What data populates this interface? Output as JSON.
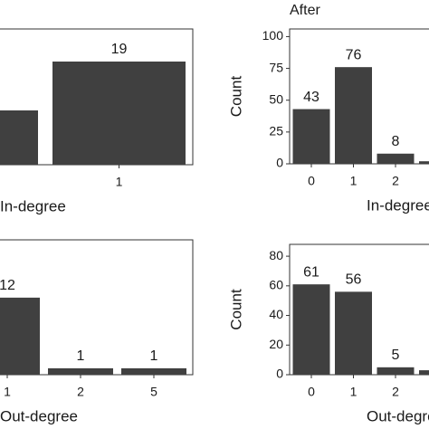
{
  "chart_data": [
    {
      "type": "bar",
      "x_label": "In-degree",
      "categories": [
        null,
        "1"
      ],
      "values": [
        10,
        19
      ],
      "color": "#404040",
      "ylim": [
        0,
        25
      ]
    },
    {
      "type": "bar",
      "title": "After",
      "y_label": "Count",
      "x_label": "In-degree",
      "categories": [
        "0",
        "1",
        "2",
        null
      ],
      "values": [
        43,
        76,
        8,
        2
      ],
      "color": "#404040",
      "ylim": [
        0,
        106
      ],
      "yticks": [
        0,
        25,
        50,
        75,
        100
      ]
    },
    {
      "type": "bar",
      "x_label": "Out-degree",
      "categories": [
        "1",
        "2",
        "5"
      ],
      "values": [
        12,
        1,
        1
      ],
      "color": "#404040",
      "ylim": [
        0,
        21
      ]
    },
    {
      "type": "bar",
      "y_label": "Count",
      "x_label": "Out-degree",
      "categories": [
        "0",
        "1",
        "2",
        null
      ],
      "values": [
        61,
        56,
        5,
        3
      ],
      "color": "#404040",
      "ylim": [
        0,
        88
      ],
      "yticks": [
        0,
        20,
        40,
        60,
        80
      ]
    }
  ]
}
